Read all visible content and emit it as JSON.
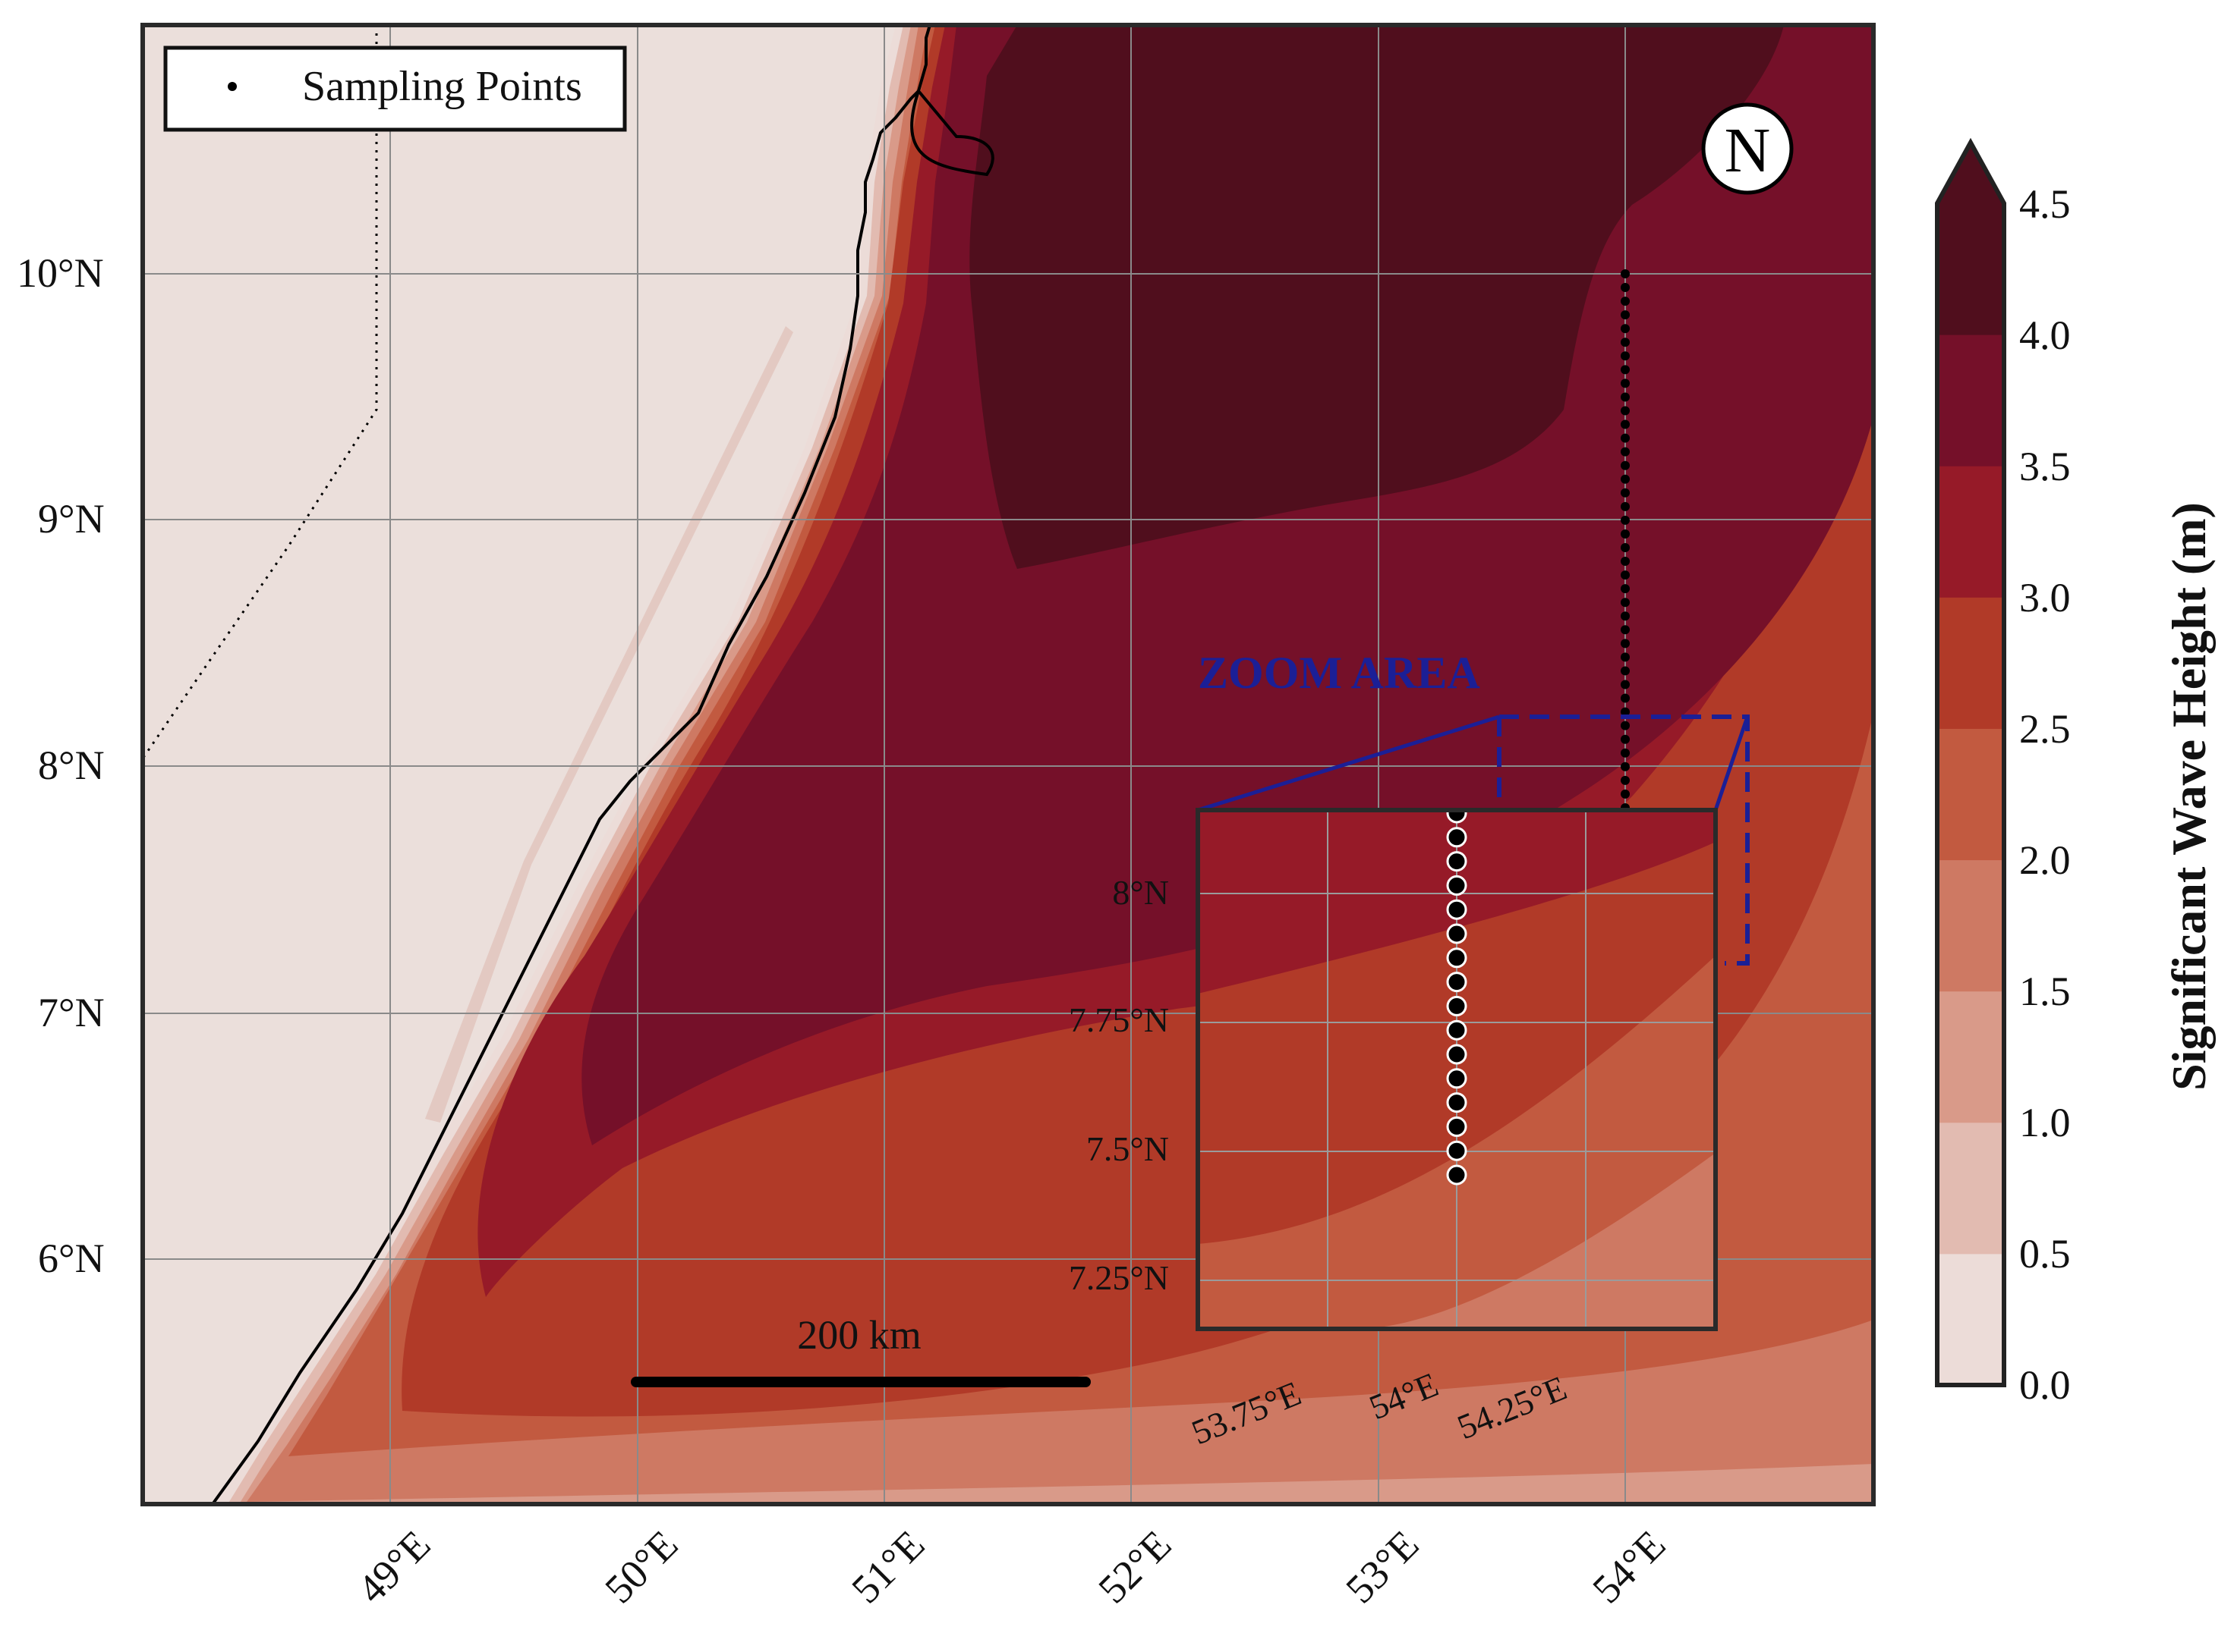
{
  "legend": {
    "label": "Sampling Points"
  },
  "north_arrow": {
    "label": "N"
  },
  "zoom": {
    "label": "ZOOM AREA"
  },
  "scale_bar": {
    "label": "200 km"
  },
  "axes": {
    "lat_ticks": [
      "10°N",
      "9°N",
      "8°N",
      "7°N",
      "6°N"
    ],
    "lon_ticks": [
      "49°E",
      "50°E",
      "51°E",
      "52°E",
      "53°E",
      "54°E"
    ]
  },
  "inset": {
    "lat_ticks": [
      "8°N",
      "7.75°N",
      "7.5°N",
      "7.25°N"
    ],
    "lon_ticks": [
      "53.75°E",
      "54°E",
      "54.25°E"
    ]
  },
  "colorbar": {
    "label": "Significant Wave Height (m)",
    "ticks": [
      "4.5",
      "4.0",
      "3.5",
      "3.0",
      "2.5",
      "2.0",
      "1.5",
      "1.0",
      "0.5",
      "0.0"
    ],
    "colors": [
      "#ecdcd8",
      "#e2bbb1",
      "#d99a89",
      "#ce7963",
      "#c25a40",
      "#b13a28",
      "#961a28",
      "#751029",
      "#500e1d"
    ],
    "extend": "max"
  },
  "colors": {
    "land": "#ebdfdb",
    "frame": "#2a2a2a",
    "grid": "#8a8a8a",
    "zoom_box": "#1b1f96",
    "points": "#000000"
  },
  "sampling_line": {
    "lon": 54.0,
    "lat_from": 10.0,
    "lat_to": 7.5
  }
}
